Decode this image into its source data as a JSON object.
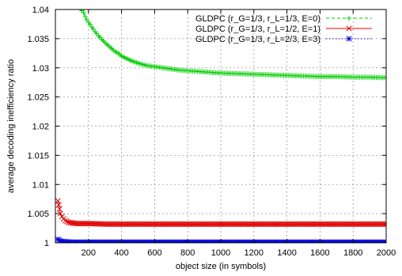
{
  "chart_data": {
    "type": "line",
    "xlabel": "object size (in symbols)",
    "ylabel": "average decoding inefficiency ratio",
    "xlim": [
      0,
      2000
    ],
    "ylim": [
      1,
      1.04
    ],
    "xticks": [
      200,
      400,
      600,
      800,
      1000,
      1200,
      1400,
      1600,
      1800,
      2000
    ],
    "yticks": [
      1,
      1.005,
      1.01,
      1.015,
      1.02,
      1.025,
      1.03,
      1.035,
      1.04
    ],
    "xtick_labels": [
      "200",
      "400",
      "600",
      "800",
      "1000",
      "1200",
      "1400",
      "1600",
      "1800",
      "2000"
    ],
    "ytick_labels": [
      "1",
      "1.005",
      "1.01",
      "1.015",
      "1.02",
      "1.025",
      "1.03",
      "1.035",
      "1.04"
    ],
    "grid": true,
    "legend_position": "top-right",
    "series": [
      {
        "name": "GLDPC (r_G=1/3, r_L=1/3, E=0)",
        "color": "#00cc00",
        "marker": "plus",
        "line_style": "dashed",
        "points": [
          [
            150,
            1.0402
          ],
          [
            160,
            1.0398
          ],
          [
            170,
            1.0395
          ],
          [
            180,
            1.0388
          ],
          [
            190,
            1.0382
          ],
          [
            200,
            1.0378
          ],
          [
            220,
            1.037
          ],
          [
            240,
            1.0362
          ],
          [
            260,
            1.0355
          ],
          [
            280,
            1.0349
          ],
          [
            300,
            1.0343
          ],
          [
            320,
            1.0338
          ],
          [
            340,
            1.0333
          ],
          [
            360,
            1.0328
          ],
          [
            380,
            1.0325
          ],
          [
            400,
            1.032
          ],
          [
            430,
            1.0316
          ],
          [
            460,
            1.0312
          ],
          [
            500,
            1.0308
          ],
          [
            550,
            1.0304
          ],
          [
            600,
            1.0302
          ],
          [
            650,
            1.03
          ],
          [
            700,
            1.0298
          ],
          [
            750,
            1.0296
          ],
          [
            800,
            1.0295
          ],
          [
            900,
            1.0293
          ],
          [
            1000,
            1.0291
          ],
          [
            1100,
            1.029
          ],
          [
            1200,
            1.0289
          ],
          [
            1300,
            1.0288
          ],
          [
            1400,
            1.0287
          ],
          [
            1500,
            1.0286
          ],
          [
            1600,
            1.0285
          ],
          [
            1700,
            1.0285
          ],
          [
            1800,
            1.0284
          ],
          [
            1900,
            1.0284
          ],
          [
            2000,
            1.0283
          ]
        ]
      },
      {
        "name": "GLDPC (r_G=1/3, r_L=1/2, E=1)",
        "color": "#e00000",
        "marker": "cross",
        "line_style": "solid",
        "points": [
          [
            15,
            1.0072
          ],
          [
            20,
            1.0065
          ],
          [
            25,
            1.0058
          ],
          [
            30,
            1.005
          ],
          [
            40,
            1.0045
          ],
          [
            50,
            1.0041
          ],
          [
            60,
            1.0038
          ],
          [
            80,
            1.0035
          ],
          [
            100,
            1.0034
          ],
          [
            130,
            1.0033
          ],
          [
            160,
            1.0033
          ],
          [
            200,
            1.0033
          ],
          [
            300,
            1.0032
          ],
          [
            400,
            1.0032
          ],
          [
            600,
            1.0032
          ],
          [
            800,
            1.0032
          ],
          [
            1000,
            1.0032
          ],
          [
            1200,
            1.0032
          ],
          [
            1400,
            1.0032
          ],
          [
            1600,
            1.0032
          ],
          [
            1800,
            1.0032
          ],
          [
            2000,
            1.0032
          ]
        ]
      },
      {
        "name": "GLDPC (r_G=1/3, r_L=2/3, E=3)",
        "color": "#0000e0",
        "marker": "star",
        "line_style": "dotted",
        "points": [
          [
            15,
            1.0006
          ],
          [
            30,
            1.0003
          ],
          [
            50,
            1.0002
          ],
          [
            100,
            1.0001
          ],
          [
            200,
            1.0001
          ],
          [
            400,
            1.0001
          ],
          [
            600,
            1.0001
          ],
          [
            800,
            1.0001
          ],
          [
            1000,
            1.0001
          ],
          [
            1200,
            1.0001
          ],
          [
            1400,
            1.0001
          ],
          [
            1600,
            1.0001
          ],
          [
            1800,
            1.0001
          ],
          [
            2000,
            1.0001
          ]
        ]
      }
    ]
  }
}
